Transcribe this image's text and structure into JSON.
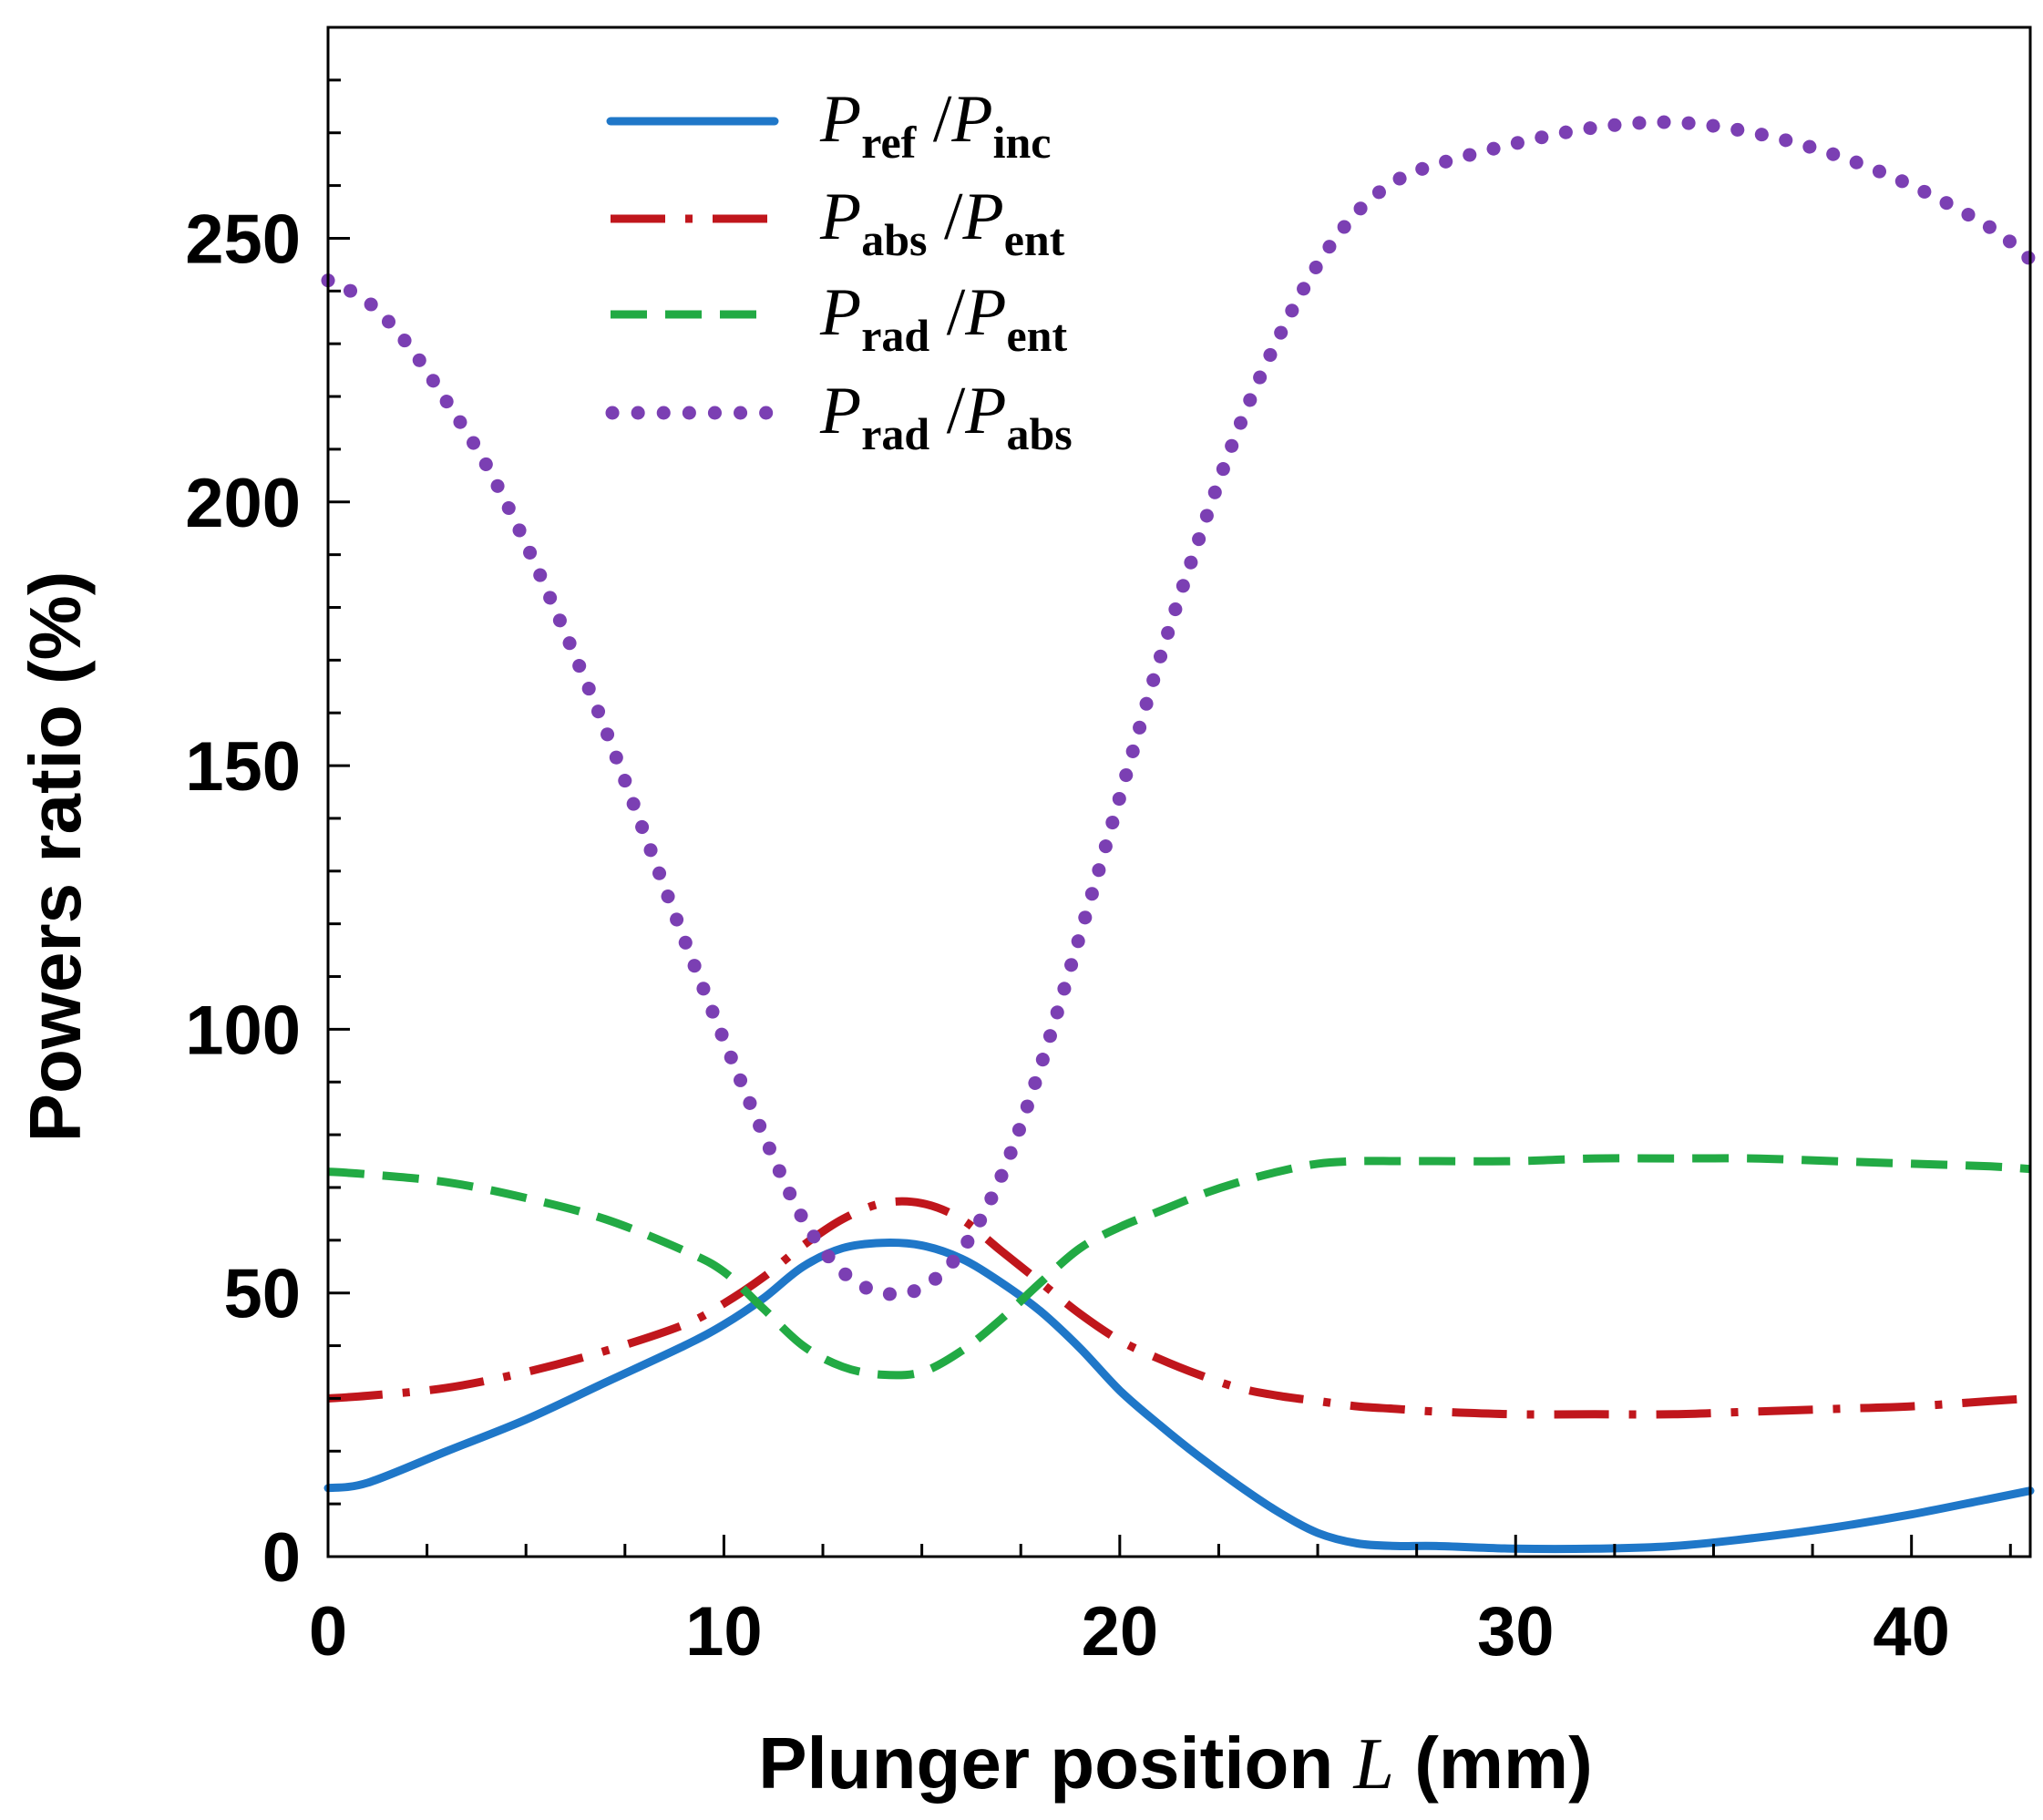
{
  "chart_data": {
    "type": "line",
    "xlabel_parts": [
      "Plunger position",
      "L",
      "(mm)"
    ],
    "ylabel": "Powers  ratio (%)",
    "xlim": [
      0,
      43
    ],
    "ylim": [
      0,
      290
    ],
    "xticks": [
      0,
      10,
      20,
      30,
      40
    ],
    "yticks": [
      0,
      50,
      100,
      150,
      200,
      250
    ],
    "xtick_labels": [
      "0",
      "10",
      "20",
      "30",
      "40"
    ],
    "ytick_labels": [
      "0",
      "50",
      "100",
      "150",
      "200",
      "250"
    ],
    "legend_position": "top-center",
    "series": [
      {
        "name": "P_ref/P_inc",
        "legend": {
          "num": "P",
          "num_sub": "ref",
          "den": "P",
          "den_sub": "inc"
        },
        "style": "solid",
        "color": "#1f77c8",
        "x": [
          0,
          1,
          3,
          5,
          7,
          9,
          10,
          11,
          12,
          13,
          14,
          15,
          16,
          17,
          18,
          19,
          20,
          21,
          22,
          23,
          24,
          25,
          26,
          27,
          28,
          30,
          32,
          34,
          36,
          38,
          40,
          42,
          43
        ],
        "y": [
          13,
          14,
          20,
          26,
          33,
          40,
          44,
          49,
          55,
          58.5,
          59.5,
          59,
          56.5,
          52,
          46.5,
          39.5,
          31.5,
          25,
          19,
          13.5,
          8.5,
          4.5,
          2.5,
          2,
          2,
          1.5,
          1.5,
          2,
          3.5,
          5.5,
          8,
          11,
          12.5
        ]
      },
      {
        "name": "P_abs/P_ent",
        "legend": {
          "num": "P",
          "num_sub": "abs",
          "den": "P",
          "den_sub": "ent"
        },
        "style": "dashdot",
        "color": "#c0161c",
        "x": [
          0,
          1,
          3,
          5,
          7,
          9,
          10,
          11,
          12,
          13,
          14,
          15,
          16,
          17,
          18,
          19,
          20,
          21,
          22,
          23,
          24,
          25,
          26,
          27,
          28,
          30,
          32,
          34,
          36,
          38,
          40,
          42,
          43
        ],
        "y": [
          30,
          30.5,
          32,
          35,
          39,
          44,
          48,
          53,
          59,
          64,
          67,
          67,
          64,
          58,
          52,
          46,
          41,
          37.5,
          34.5,
          32,
          30.5,
          29.5,
          28.5,
          28,
          27.5,
          27,
          27,
          27,
          27.5,
          28,
          28.5,
          29.5,
          30
        ]
      },
      {
        "name": "P_rad/P_ent",
        "legend": {
          "num": "P",
          "num_sub": "rad",
          "den": "P",
          "den_sub": "ent"
        },
        "style": "dashed",
        "color": "#22aa44",
        "x": [
          0,
          1,
          3,
          5,
          7,
          9,
          10,
          11,
          12,
          13,
          14,
          15,
          16,
          17,
          18,
          19,
          20,
          21,
          22,
          23,
          24,
          25,
          26,
          27,
          28,
          30,
          32,
          34,
          36,
          38,
          40,
          42,
          43
        ],
        "y": [
          73,
          72.5,
          71,
          68,
          64,
          58,
          54,
          47,
          40,
          36,
          34.5,
          35,
          39,
          45,
          52,
          58.5,
          62.5,
          65.5,
          68.5,
          71,
          73,
          74.5,
          75,
          75,
          75,
          75,
          75.5,
          75.5,
          75.5,
          75,
          74.5,
          74,
          73.5
        ]
      },
      {
        "name": "P_rad/P_abs",
        "legend": {
          "num": "P",
          "num_sub": "rad",
          "den": "P",
          "den_sub": "abs"
        },
        "style": "dotted",
        "color": "#7b3fb3",
        "x": [
          0,
          1,
          2,
          3,
          4,
          5,
          6,
          7,
          8,
          9,
          10,
          11,
          12,
          13,
          14,
          15,
          16,
          17,
          18,
          19,
          20,
          21,
          22,
          23,
          24,
          25,
          26,
          27,
          28,
          30,
          32,
          34,
          36,
          38,
          40,
          42,
          43
        ],
        "y": [
          242,
          238,
          230,
          219,
          207,
          192,
          175,
          157,
          137,
          117,
          98,
          80,
          64,
          54,
          50,
          51,
          58,
          72,
          93,
          118,
          144,
          170,
          193,
          214,
          231,
          245,
          255,
          261,
          264,
          268,
          271,
          272,
          270,
          266,
          260,
          252,
          246
        ]
      }
    ]
  }
}
